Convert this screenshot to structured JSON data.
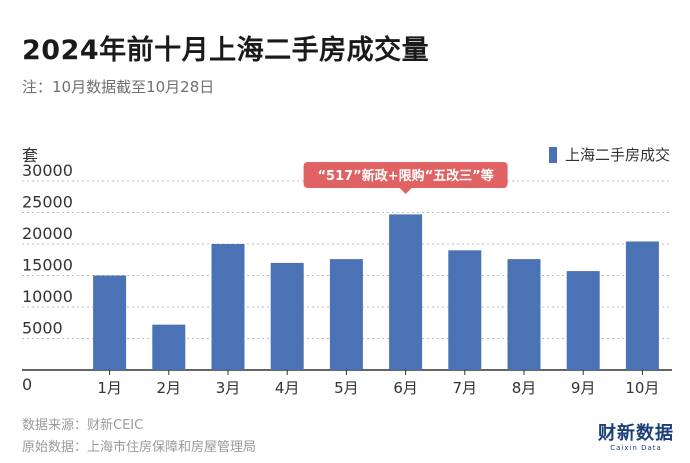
{
  "header": {
    "title": "2024年前十月上海二手房成交量",
    "subtitle": "注：10月数据截至10月28日"
  },
  "colors": {
    "bar": "#4a72b4",
    "annotation_bg": "#e06262",
    "grid": "#bfbfbf",
    "axis": "#333333",
    "logo": "#1d3f7a"
  },
  "chart_data": {
    "type": "bar",
    "ylabel": "套",
    "categories": [
      "1月",
      "2月",
      "3月",
      "4月",
      "5月",
      "6月",
      "7月",
      "8月",
      "9月",
      "10月"
    ],
    "series": [
      {
        "name": "上海二手房成交",
        "values": [
          15000,
          7200,
          20000,
          17000,
          17600,
          24700,
          19000,
          17600,
          15700,
          20400
        ]
      }
    ],
    "ylim": [
      0,
      30000
    ],
    "yticks": [
      0,
      5000,
      10000,
      15000,
      20000,
      25000,
      30000
    ],
    "grid": true,
    "legend_position": "top-right",
    "annotations": [
      {
        "text": "“517”新政+限购“五改三”等",
        "category": "6月"
      }
    ]
  },
  "footer": {
    "source": "数据来源：财新CEIC",
    "original": "原始数据：上海市住房保障和房屋管理局"
  },
  "logo": {
    "main": "财新数据",
    "sub": "Caixin Data"
  }
}
